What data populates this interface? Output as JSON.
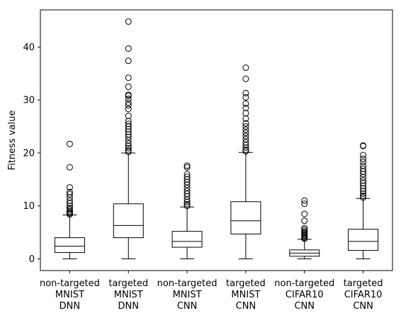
{
  "chart_data": {
    "type": "box",
    "title": "",
    "xlabel": "",
    "ylabel": "Fitness value",
    "ylim": [
      -2.2,
      47.0
    ],
    "yticks": [
      0,
      10,
      20,
      30,
      40
    ],
    "grid": false,
    "categories": [
      [
        "non-targeted",
        "MNIST",
        "DNN"
      ],
      [
        "targeted",
        "MNIST",
        "DNN"
      ],
      [
        "non-targeted",
        "MNIST",
        "CNN"
      ],
      [
        "targeted",
        "MNIST",
        "CNN"
      ],
      [
        "non-targeted",
        "CIFAR10",
        "CNN"
      ],
      [
        "targeted",
        "CIFAR10",
        "CNN"
      ]
    ],
    "boxes": [
      {
        "whislo": 0,
        "q1": 1.2,
        "med": 2.4,
        "q3": 4.0,
        "whishi": 8.3,
        "fliers": [
          8.4,
          8.6,
          8.8,
          9.0,
          9.3,
          9.6,
          10.0,
          10.5,
          11.0,
          11.6,
          12.2,
          12.6,
          13.5,
          17.3,
          21.7
        ]
      },
      {
        "whislo": 0,
        "q1": 4.0,
        "med": 6.3,
        "q3": 10.4,
        "whishi": 20.0,
        "fliers": [
          20.2,
          20.5,
          20.9,
          21.3,
          21.8,
          22.4,
          23.0,
          23.5,
          24.0,
          24.5,
          25.0,
          25.5,
          26.0,
          27.0,
          28.3,
          29.0,
          29.5,
          30.2,
          30.8,
          31.0,
          32.5,
          34.2,
          37.4,
          39.7,
          44.8
        ]
      },
      {
        "whislo": 0,
        "q1": 2.2,
        "med": 3.3,
        "q3": 5.2,
        "whishi": 9.8,
        "fliers": [
          10.0,
          10.3,
          10.7,
          11.2,
          11.8,
          12.3,
          12.8,
          13.4,
          14.0,
          14.5,
          15.0,
          15.5,
          16.0,
          17.3,
          17.6
        ]
      },
      {
        "whislo": 0,
        "q1": 4.7,
        "med": 7.2,
        "q3": 10.8,
        "whishi": 20.1,
        "fliers": [
          20.3,
          20.6,
          21.0,
          21.5,
          22.0,
          22.6,
          23.2,
          23.8,
          24.4,
          25.0,
          25.6,
          26.5,
          27.5,
          28.5,
          29.3,
          30.5,
          31.3,
          34.0,
          36.1
        ]
      },
      {
        "whislo": 0,
        "q1": 0.5,
        "med": 1.1,
        "q3": 1.7,
        "whishi": 3.7,
        "fliers": [
          3.8,
          4.0,
          4.2,
          4.4,
          4.6,
          4.8,
          5.0,
          5.2,
          5.5,
          5.8,
          7.2,
          8.5,
          10.4,
          11.0
        ]
      },
      {
        "whislo": 0,
        "q1": 1.6,
        "med": 3.3,
        "q3": 5.6,
        "whishi": 11.4,
        "fliers": [
          11.6,
          11.9,
          12.3,
          12.8,
          13.3,
          13.8,
          14.3,
          14.8,
          15.4,
          16.0,
          16.5,
          17.0,
          17.6,
          18.3,
          18.9,
          19.6,
          21.3,
          21.4
        ]
      }
    ]
  }
}
